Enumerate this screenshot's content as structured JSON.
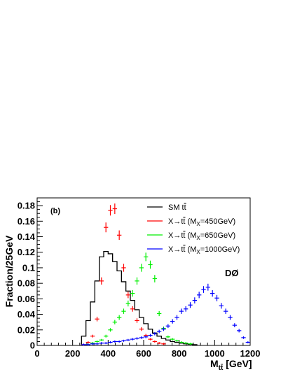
{
  "chart_data": {
    "type": "line",
    "panel_label": "(b)",
    "experiment_label": "DØ",
    "xlabel": {
      "main": "M",
      "sub": "tt̄",
      "unit": " [GeV]"
    },
    "ylabel": "Fraction/25GeV",
    "xlim": [
      0,
      1200
    ],
    "ylim": [
      0,
      0.19
    ],
    "x_ticks": [
      0,
      200,
      400,
      600,
      800,
      1000,
      1200
    ],
    "x_tick_labels": [
      "0",
      "200",
      "400",
      "600",
      "800",
      "1000",
      "1200"
    ],
    "y_ticks": [
      0,
      0.02,
      0.04,
      0.06,
      0.08,
      0.1,
      0.12,
      0.14,
      0.16,
      0.18
    ],
    "y_tick_labels": [
      "0",
      "0.02",
      "0.04",
      "0.06",
      "0.08",
      "0.1",
      "0.12",
      "0.14",
      "0.16",
      "0.18"
    ],
    "grid": false,
    "legend_position": "top-right",
    "series": [
      {
        "name": "SM tt̄",
        "legend": {
          "pre": "SM t",
          "bar": "t",
          "post": "",
          "sub": "",
          "tail": ""
        },
        "style": "histogram",
        "color": "#000000",
        "bin_width": 25,
        "bin_edges_start": 250,
        "values": [
          0.012,
          0.032,
          0.056,
          0.083,
          0.114,
          0.121,
          0.118,
          0.108,
          0.096,
          0.082,
          0.07,
          0.058,
          0.046,
          0.036,
          0.028,
          0.021,
          0.016,
          0.012,
          0.009,
          0.007,
          0.005,
          0.004,
          0.003,
          0.002,
          0.0015,
          0.001
        ]
      },
      {
        "name": "X→tt̄ (MX=450GeV)",
        "legend": {
          "pre": "X→t",
          "bar": "t",
          "post": " (M",
          "sub": "X",
          "tail": "=450GeV)"
        },
        "style": "points",
        "color": "#ff0000",
        "x": [
          262.5,
          287.5,
          312.5,
          337.5,
          362.5,
          387.5,
          412.5,
          437.5,
          462.5,
          487.5,
          512.5,
          537.5,
          562.5,
          587.5,
          612.5,
          637.5,
          662.5,
          687.5,
          712.5
        ],
        "y": [
          0.001,
          0.004,
          0.012,
          0.034,
          0.083,
          0.152,
          0.174,
          0.176,
          0.142,
          0.1,
          0.065,
          0.047,
          0.032,
          0.021,
          0.013,
          0.008,
          0.005,
          0.003,
          0.002
        ]
      },
      {
        "name": "X→tt̄ (MX=650GeV)",
        "legend": {
          "pre": "X→t",
          "bar": "t",
          "post": " (M",
          "sub": "X",
          "tail": "=650GeV)"
        },
        "style": "points",
        "color": "#00ee00",
        "x": [
          287.5,
          312.5,
          337.5,
          362.5,
          387.5,
          412.5,
          437.5,
          462.5,
          487.5,
          512.5,
          537.5,
          562.5,
          587.5,
          612.5,
          637.5,
          662.5,
          687.5,
          712.5,
          737.5,
          762.5,
          787.5,
          812.5,
          837.5,
          862.5
        ],
        "y": [
          0.001,
          0.003,
          0.005,
          0.007,
          0.012,
          0.02,
          0.03,
          0.036,
          0.044,
          0.054,
          0.067,
          0.083,
          0.1,
          0.114,
          0.104,
          0.086,
          0.041,
          0.022,
          0.011,
          0.008,
          0.006,
          0.004,
          0.003,
          0.002
        ]
      },
      {
        "name": "X→tt̄ (MX=1000GeV)",
        "legend": {
          "pre": "X→t",
          "bar": "t",
          "post": " (M",
          "sub": "X",
          "tail": "=1000GeV)"
        },
        "style": "points",
        "color": "#0000ff",
        "x": [
          262.5,
          287.5,
          312.5,
          337.5,
          362.5,
          387.5,
          412.5,
          437.5,
          462.5,
          487.5,
          512.5,
          537.5,
          562.5,
          587.5,
          612.5,
          637.5,
          662.5,
          687.5,
          712.5,
          737.5,
          762.5,
          787.5,
          812.5,
          837.5,
          862.5,
          887.5,
          912.5,
          937.5,
          962.5,
          987.5,
          1012.5,
          1037.5,
          1062.5,
          1087.5,
          1112.5,
          1137.5,
          1162.5,
          1187.5
        ],
        "y": [
          0.001,
          0.001,
          0.002,
          0.002,
          0.003,
          0.003,
          0.004,
          0.005,
          0.005,
          0.006,
          0.007,
          0.008,
          0.009,
          0.01,
          0.011,
          0.013,
          0.015,
          0.018,
          0.021,
          0.025,
          0.031,
          0.036,
          0.044,
          0.047,
          0.052,
          0.058,
          0.065,
          0.072,
          0.075,
          0.067,
          0.061,
          0.051,
          0.044,
          0.036,
          0.026,
          0.019,
          0.01,
          0.004
        ]
      }
    ]
  }
}
